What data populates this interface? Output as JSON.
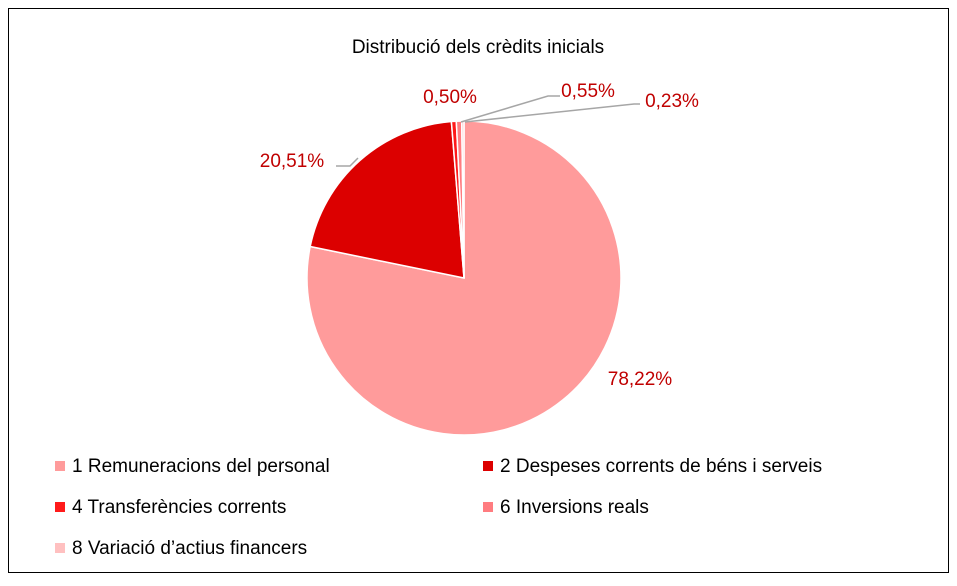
{
  "chart_data": {
    "type": "pie",
    "title": "Distribució dels crèdits inicials",
    "categories": [
      "1 Remuneracions del personal",
      "2 Despeses corrents de béns i serveis",
      "4 Transferències corrents",
      "6 Inversions reals",
      "8 Variació d’actius financers"
    ],
    "values": [
      78.22,
      20.51,
      0.5,
      0.55,
      0.23
    ],
    "value_labels": [
      "78,22%",
      "20,51%",
      "0,50%",
      "0,55%",
      "0,23%"
    ],
    "colors": [
      "#ff9b9b",
      "#dc0000",
      "#ff1a1a",
      "#ff7c80",
      "#ffc0c0"
    ],
    "label_color": "#c00000",
    "legend": "bottom"
  }
}
